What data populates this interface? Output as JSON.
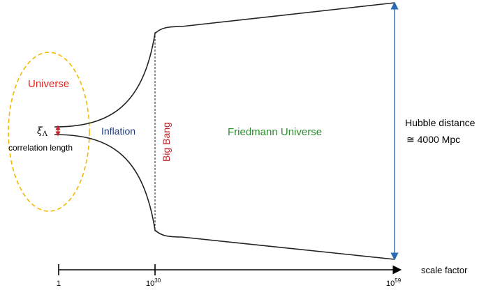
{
  "labels": {
    "universe": "Universe",
    "xi_symbol": "ξ",
    "xi_subscript": "Λ",
    "correlation_length": "correlation length",
    "inflation": "Inflation",
    "big_bang": "Big Bang",
    "friedmann": "Friedmann Universe",
    "hubble_line1": "Hubble distance",
    "hubble_line2": "≅ 4000 Mpc",
    "axis_label": "scale factor"
  },
  "axis_ticks": [
    {
      "base": "1",
      "exp": ""
    },
    {
      "base": "10",
      "exp": "30"
    },
    {
      "base": "10",
      "exp": "59"
    }
  ],
  "colors": {
    "universe_text": "#e8231f",
    "inflation_text": "#1f3b7a",
    "big_bang_text": "#c0262c",
    "friedmann_text": "#2e8b2e",
    "ellipse_stroke": "#f5b800",
    "hubble_arrow": "#2b6cb0",
    "curve": "#222222",
    "xi_arrow": "#c0262c"
  }
}
